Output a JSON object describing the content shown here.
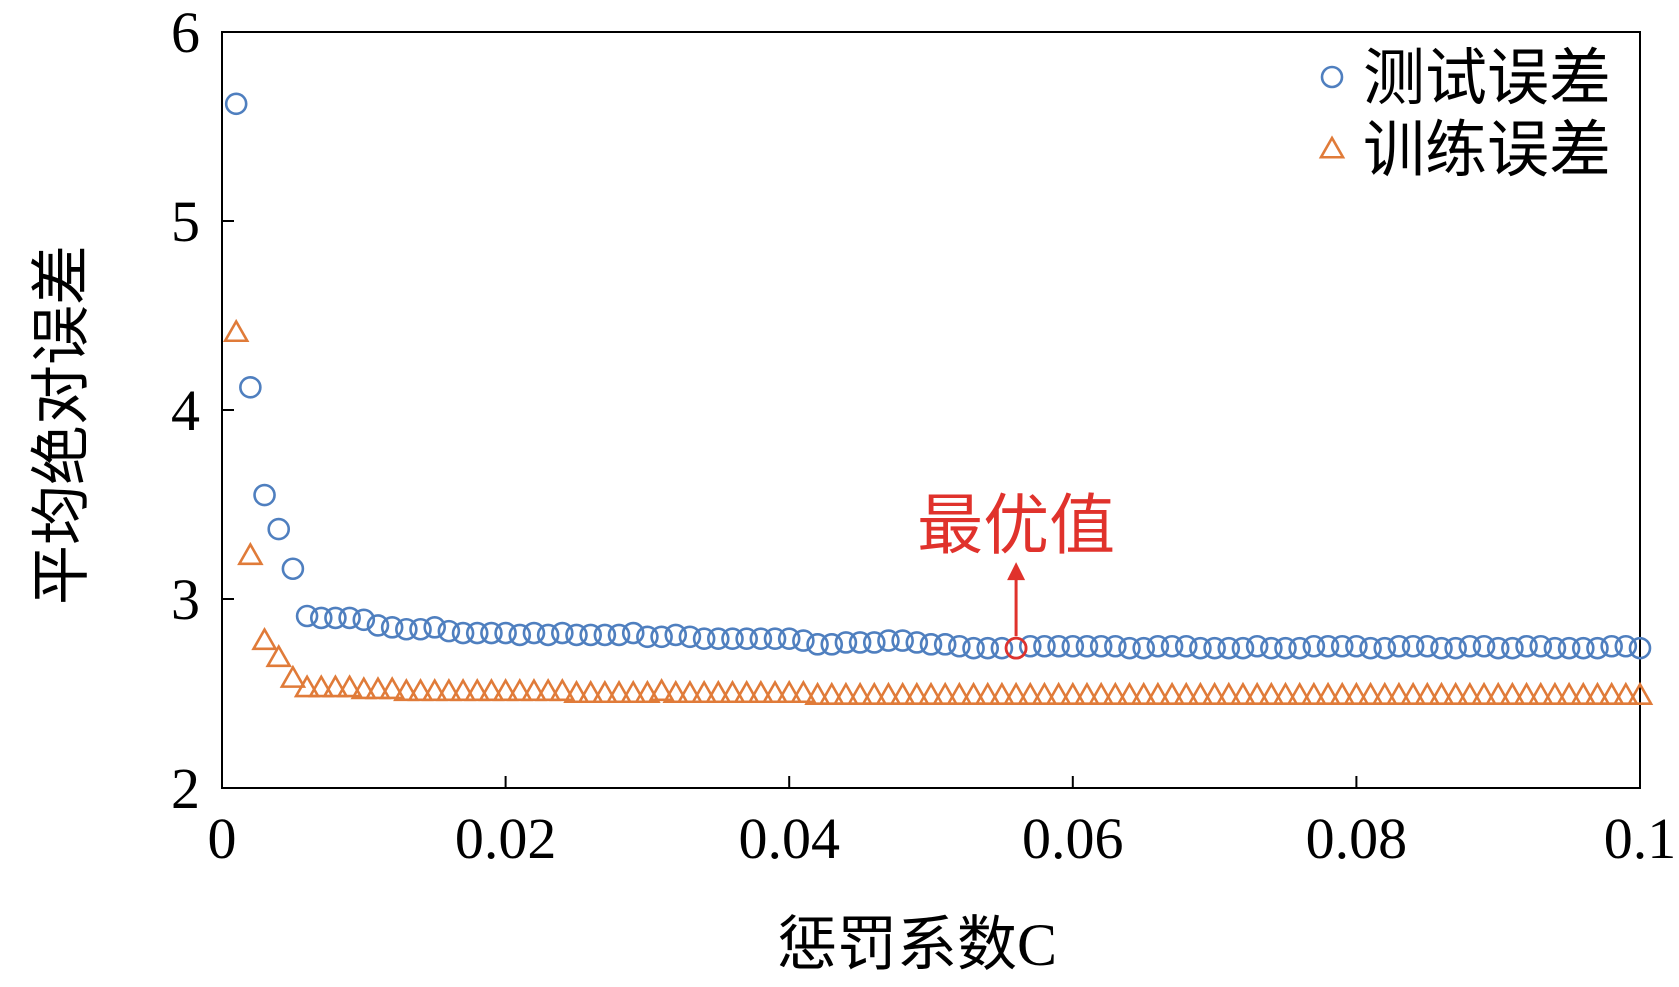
{
  "chart_data": {
    "type": "scatter",
    "xlabel": "惩罚系数C",
    "ylabel": "平均绝对误差",
    "xlim": [
      0,
      0.1
    ],
    "ylim": [
      2,
      6
    ],
    "xticks": [
      0,
      0.02,
      0.04,
      0.06,
      0.08,
      0.1
    ],
    "xtick_labels": [
      "0",
      "0.02",
      "0.04",
      "0.06",
      "0.08",
      "0.1"
    ],
    "yticks": [
      2,
      3,
      4,
      5,
      6
    ],
    "ytick_labels": [
      "2",
      "3",
      "4",
      "5",
      "6"
    ],
    "grid": false,
    "legend_position": "top-right",
    "series": [
      {
        "name": "测试误差",
        "marker": "circle",
        "color": "#4f7fbf",
        "x": [
          0.001,
          0.002,
          0.003,
          0.004,
          0.005,
          0.006,
          0.007,
          0.008,
          0.009,
          0.01,
          0.011,
          0.012,
          0.013,
          0.014,
          0.015,
          0.016,
          0.017,
          0.018,
          0.019,
          0.02,
          0.021,
          0.022,
          0.023,
          0.024,
          0.025,
          0.026,
          0.027,
          0.028,
          0.029,
          0.03,
          0.031,
          0.032,
          0.033,
          0.034,
          0.035,
          0.036,
          0.037,
          0.038,
          0.039,
          0.04,
          0.041,
          0.042,
          0.043,
          0.044,
          0.045,
          0.046,
          0.047,
          0.048,
          0.049,
          0.05,
          0.051,
          0.052,
          0.053,
          0.054,
          0.055,
          0.056,
          0.057,
          0.058,
          0.059,
          0.06,
          0.061,
          0.062,
          0.063,
          0.064,
          0.065,
          0.066,
          0.067,
          0.068,
          0.069,
          0.07,
          0.071,
          0.072,
          0.073,
          0.074,
          0.075,
          0.076,
          0.077,
          0.078,
          0.079,
          0.08,
          0.081,
          0.082,
          0.083,
          0.084,
          0.085,
          0.086,
          0.087,
          0.088,
          0.089,
          0.09,
          0.091,
          0.092,
          0.093,
          0.094,
          0.095,
          0.096,
          0.097,
          0.098,
          0.099,
          0.1
        ],
        "y": [
          5.62,
          4.12,
          3.55,
          3.37,
          3.16,
          2.91,
          2.9,
          2.9,
          2.9,
          2.89,
          2.86,
          2.85,
          2.84,
          2.84,
          2.85,
          2.83,
          2.82,
          2.82,
          2.82,
          2.82,
          2.81,
          2.82,
          2.81,
          2.82,
          2.81,
          2.81,
          2.81,
          2.81,
          2.82,
          2.8,
          2.8,
          2.81,
          2.8,
          2.79,
          2.79,
          2.79,
          2.79,
          2.79,
          2.79,
          2.79,
          2.78,
          2.76,
          2.76,
          2.77,
          2.77,
          2.77,
          2.78,
          2.78,
          2.77,
          2.76,
          2.76,
          2.75,
          2.74,
          2.74,
          2.74,
          2.74,
          2.75,
          2.75,
          2.75,
          2.75,
          2.75,
          2.75,
          2.75,
          2.74,
          2.74,
          2.75,
          2.75,
          2.75,
          2.74,
          2.74,
          2.74,
          2.74,
          2.75,
          2.74,
          2.74,
          2.74,
          2.75,
          2.75,
          2.75,
          2.75,
          2.74,
          2.74,
          2.75,
          2.75,
          2.75,
          2.74,
          2.74,
          2.75,
          2.75,
          2.74,
          2.74,
          2.75,
          2.75,
          2.74,
          2.74,
          2.74,
          2.74,
          2.75,
          2.75,
          2.74
        ]
      },
      {
        "name": "训练误差",
        "marker": "triangle",
        "color": "#e07b39",
        "x": [
          0.001,
          0.002,
          0.003,
          0.004,
          0.005,
          0.006,
          0.007,
          0.008,
          0.009,
          0.01,
          0.011,
          0.012,
          0.013,
          0.014,
          0.015,
          0.016,
          0.017,
          0.018,
          0.019,
          0.02,
          0.021,
          0.022,
          0.023,
          0.024,
          0.025,
          0.026,
          0.027,
          0.028,
          0.029,
          0.03,
          0.031,
          0.032,
          0.033,
          0.034,
          0.035,
          0.036,
          0.037,
          0.038,
          0.039,
          0.04,
          0.041,
          0.042,
          0.043,
          0.044,
          0.045,
          0.046,
          0.047,
          0.048,
          0.049,
          0.05,
          0.051,
          0.052,
          0.053,
          0.054,
          0.055,
          0.056,
          0.057,
          0.058,
          0.059,
          0.06,
          0.061,
          0.062,
          0.063,
          0.064,
          0.065,
          0.066,
          0.067,
          0.068,
          0.069,
          0.07,
          0.071,
          0.072,
          0.073,
          0.074,
          0.075,
          0.076,
          0.077,
          0.078,
          0.079,
          0.08,
          0.081,
          0.082,
          0.083,
          0.084,
          0.085,
          0.086,
          0.087,
          0.088,
          0.089,
          0.09,
          0.091,
          0.092,
          0.093,
          0.094,
          0.095,
          0.096,
          0.097,
          0.098,
          0.099,
          0.1
        ],
        "y": [
          4.41,
          3.23,
          2.78,
          2.69,
          2.58,
          2.53,
          2.53,
          2.53,
          2.53,
          2.52,
          2.52,
          2.52,
          2.51,
          2.51,
          2.51,
          2.51,
          2.51,
          2.51,
          2.51,
          2.51,
          2.51,
          2.51,
          2.51,
          2.51,
          2.5,
          2.5,
          2.5,
          2.5,
          2.5,
          2.5,
          2.51,
          2.5,
          2.5,
          2.5,
          2.5,
          2.5,
          2.5,
          2.5,
          2.5,
          2.5,
          2.5,
          2.49,
          2.49,
          2.49,
          2.49,
          2.49,
          2.49,
          2.49,
          2.49,
          2.49,
          2.49,
          2.49,
          2.49,
          2.49,
          2.49,
          2.49,
          2.49,
          2.49,
          2.49,
          2.49,
          2.49,
          2.49,
          2.49,
          2.49,
          2.49,
          2.49,
          2.49,
          2.49,
          2.49,
          2.49,
          2.49,
          2.49,
          2.49,
          2.49,
          2.49,
          2.49,
          2.49,
          2.49,
          2.49,
          2.49,
          2.49,
          2.49,
          2.49,
          2.49,
          2.49,
          2.49,
          2.49,
          2.49,
          2.49,
          2.49,
          2.49,
          2.49,
          2.49,
          2.49,
          2.49,
          2.49,
          2.49,
          2.49,
          2.49,
          2.49
        ]
      }
    ],
    "annotation": {
      "text": "最优值",
      "x": 0.056,
      "y": 2.74,
      "color": "#e0322c"
    }
  }
}
